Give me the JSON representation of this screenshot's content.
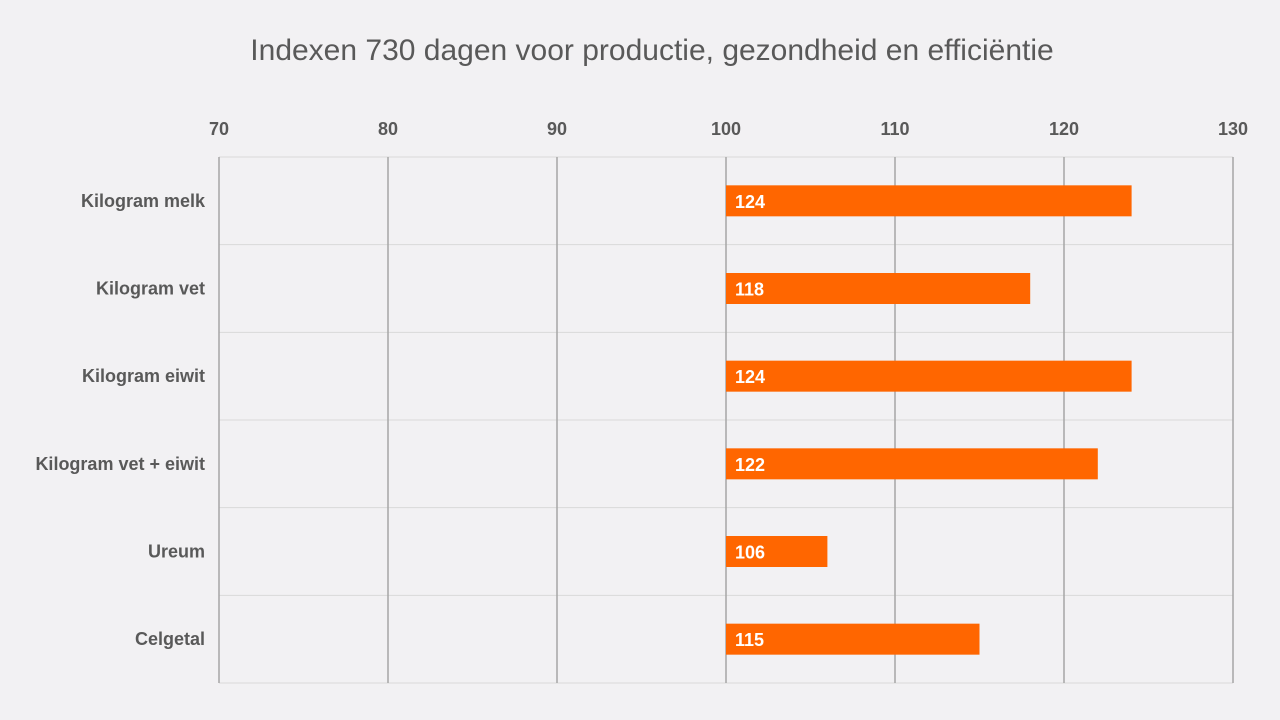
{
  "chart_data": {
    "type": "bar",
    "orientation": "horizontal",
    "title": "Indexen 730 dagen voor productie, gezondheid en efficiëntie",
    "categories": [
      "Kilogram melk",
      "Kilogram vet",
      "Kilogram eiwit",
      "Kilogram vet + eiwit",
      "Ureum",
      "Celgetal"
    ],
    "values": [
      124,
      118,
      124,
      122,
      106,
      115
    ],
    "baseline": 100,
    "xlim": [
      70,
      130
    ],
    "x_ticks": [
      70,
      80,
      90,
      100,
      110,
      120,
      130
    ],
    "x_axis_position": "top",
    "grid": true,
    "legend": "none",
    "data_labels": true,
    "colors": {
      "bar": "#ff6600",
      "grid_major": "#a6a6a6",
      "grid_minor": "#d9d9d9",
      "text": "#595959",
      "background": "#f2f1f3"
    }
  }
}
